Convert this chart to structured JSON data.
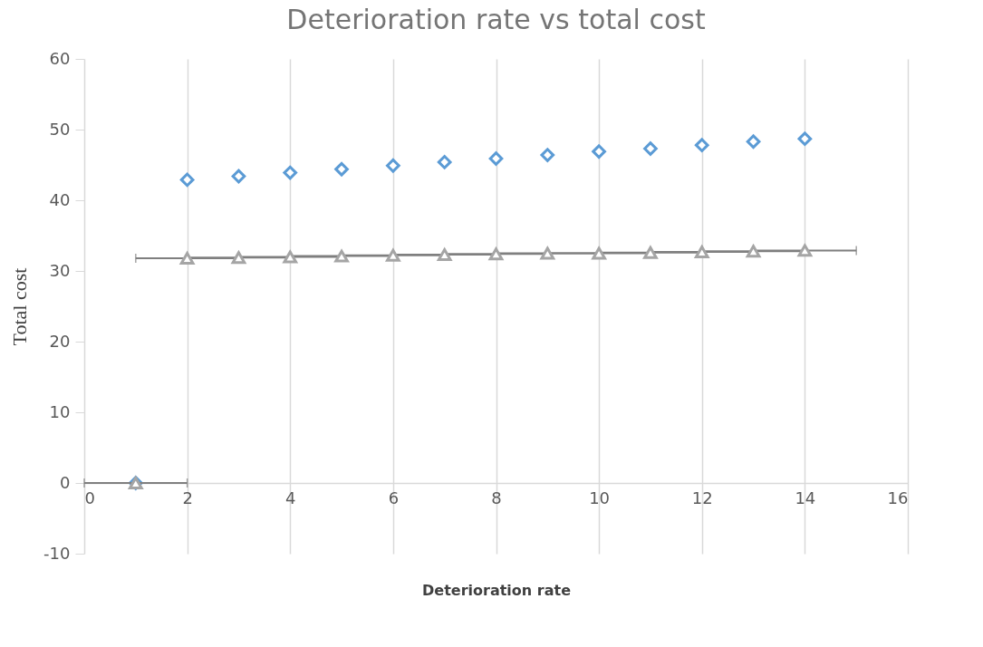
{
  "chart_data": {
    "type": "scatter",
    "title": "Deterioration rate vs total cost",
    "xlabel": "Deterioration rate",
    "ylabel": "Total cost",
    "xlim": [
      0,
      16
    ],
    "ylim": [
      -10,
      60
    ],
    "xticks": [
      0,
      2,
      4,
      6,
      8,
      10,
      12,
      14,
      16
    ],
    "yticks": [
      -10,
      0,
      10,
      20,
      30,
      40,
      50,
      60
    ],
    "grid": "x",
    "series": [
      {
        "color": "#5b9bd5",
        "marker": "diamond",
        "x": [
          1,
          2,
          3,
          4,
          5,
          6,
          7,
          8,
          9,
          10,
          11,
          12,
          13,
          14
        ],
        "values": [
          0,
          42.9,
          43.4,
          43.9,
          44.4,
          44.9,
          45.4,
          45.9,
          46.4,
          46.9,
          47.3,
          47.8,
          48.3,
          48.7
        ]
      },
      {
        "color": "#a5a5a5",
        "marker": "triangle",
        "x": [
          1,
          2,
          3,
          4,
          5,
          6,
          7,
          8,
          9,
          10,
          11,
          12,
          13,
          14
        ],
        "values": [
          0,
          31.8,
          31.9,
          32.0,
          32.1,
          32.2,
          32.3,
          32.4,
          32.5,
          32.5,
          32.6,
          32.7,
          32.8,
          32.9
        ],
        "xerrors": [
          1,
          1,
          1,
          1,
          1,
          1,
          1,
          1,
          1,
          1,
          1,
          1,
          1,
          1
        ]
      }
    ]
  }
}
